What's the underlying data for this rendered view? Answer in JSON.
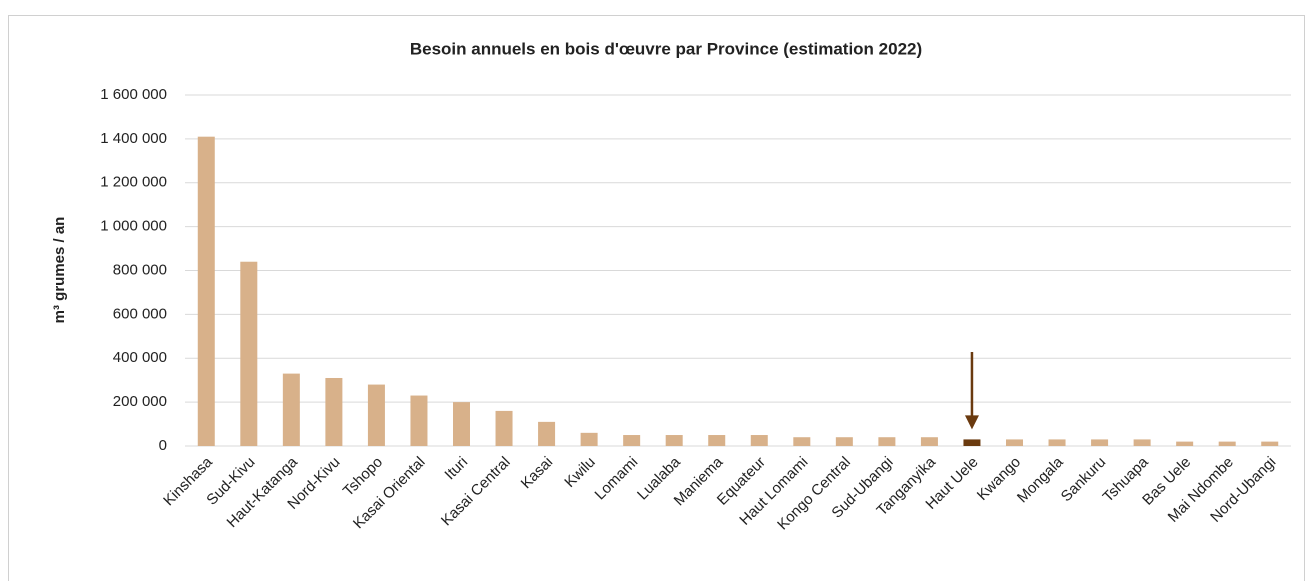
{
  "chart_data": {
    "type": "bar",
    "title": "Besoin annuels en bois d'œuvre par Province (estimation 2022)",
    "ylabel": "m³ grumes / an",
    "categories": [
      "Kinshasa",
      "Sud-Kivu",
      "Haut-Katanga",
      "Nord-Kivu",
      "Tshopo",
      "Kasai Oriental",
      "Ituri",
      "Kasai Central",
      "Kasai",
      "Kwilu",
      "Lomami",
      "Lualaba",
      "Maniema",
      "Equateur",
      "Haut Lomami",
      "Kongo Central",
      "Sud-Ubangi",
      "Tanganyika",
      "Haut Uele",
      "Kwango",
      "Mongala",
      "Sankuru",
      "Tshuapa",
      "Bas Uele",
      "Mai Ndombe",
      "Nord-Ubangi"
    ],
    "values": [
      1410000,
      840000,
      330000,
      310000,
      280000,
      230000,
      200000,
      160000,
      110000,
      60000,
      50000,
      50000,
      50000,
      50000,
      40000,
      40000,
      40000,
      40000,
      30000,
      30000,
      30000,
      30000,
      30000,
      20000,
      20000,
      20000
    ],
    "colors": [
      "#d8b18a",
      "#d8b18a",
      "#d8b18a",
      "#d8b18a",
      "#d8b18a",
      "#d8b18a",
      "#d8b18a",
      "#d8b18a",
      "#d8b18a",
      "#d8b18a",
      "#d8b18a",
      "#d8b18a",
      "#d8b18a",
      "#d8b18a",
      "#d8b18a",
      "#d8b18a",
      "#d8b18a",
      "#d8b18a",
      "#6a3a0f",
      "#d8b18a",
      "#d8b18a",
      "#d8b18a",
      "#d8b18a",
      "#d8b18a",
      "#d8b18a",
      "#d8b18a"
    ],
    "ylim": [
      0,
      1600000
    ],
    "yticks": [
      0,
      {
        "value": 200000,
        "label": "200 000"
      },
      {
        "value": 400000,
        "label": "400 000"
      },
      {
        "value": 600000,
        "label": "600 000"
      },
      {
        "value": 800000,
        "label": "800 000"
      },
      {
        "value": 1000000,
        "label": "1 000 000"
      },
      {
        "value": 1200000,
        "label": "1 200 000"
      },
      {
        "value": 1400000,
        "label": "1 400 000"
      },
      {
        "value": 1600000,
        "label": "1 600 000"
      }
    ],
    "grid": true
  }
}
